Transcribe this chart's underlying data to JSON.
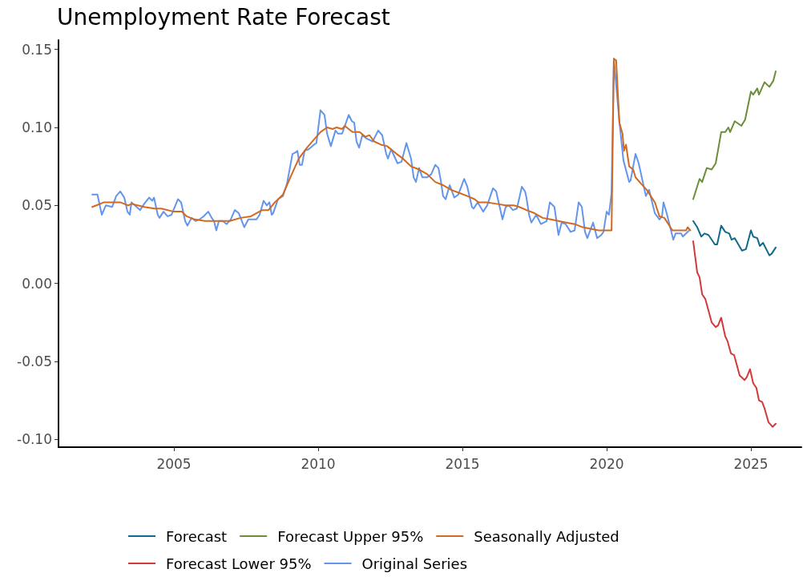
{
  "chart_data": {
    "type": "line",
    "title": "Unemployment Rate Forecast",
    "legend": "bottom",
    "grid": false,
    "marker": "none",
    "line_style": "solid",
    "xlim": [
      2001,
      2026.75
    ],
    "xticks": [
      2005,
      2010,
      2015,
      2020,
      2025
    ],
    "ylim": [
      -0.105,
      0.156
    ],
    "yticks": [
      {
        "value": -0.1,
        "label": "-0.10"
      },
      {
        "value": -0.05,
        "label": "-0.05"
      },
      {
        "value": 0,
        "label": "0.00"
      },
      {
        "value": 0.05,
        "label": "0.05"
      },
      {
        "value": 0.1,
        "label": "0.10"
      },
      {
        "value": 0.15,
        "label": "0.15"
      }
    ],
    "series": [
      {
        "name": "Forecast",
        "color": "#0f6a8b",
        "x": [
          2023.0,
          2023.14,
          2023.28,
          2023.39,
          2023.53,
          2023.75,
          2023.83,
          2023.97,
          2024.11,
          2024.25,
          2024.33,
          2024.44,
          2024.69,
          2024.83,
          2025.0,
          2025.08,
          2025.22,
          2025.31,
          2025.42,
          2025.64,
          2025.72,
          2025.86
        ],
        "values": [
          0.04,
          0.036,
          0.03,
          0.032,
          0.031,
          0.025,
          0.025,
          0.037,
          0.033,
          0.032,
          0.028,
          0.029,
          0.021,
          0.022,
          0.034,
          0.03,
          0.029,
          0.024,
          0.026,
          0.018,
          0.019,
          0.023
        ]
      },
      {
        "name": "Forecast Upper 95%",
        "color": "#6b8e3a",
        "x": [
          2023.0,
          2023.22,
          2023.31,
          2023.47,
          2023.64,
          2023.78,
          2023.97,
          2024.11,
          2024.22,
          2024.28,
          2024.44,
          2024.67,
          2024.8,
          2025.0,
          2025.08,
          2025.22,
          2025.28,
          2025.47,
          2025.64,
          2025.78,
          2025.86
        ],
        "values": [
          0.054,
          0.067,
          0.065,
          0.074,
          0.073,
          0.077,
          0.097,
          0.097,
          0.1,
          0.097,
          0.104,
          0.101,
          0.105,
          0.123,
          0.121,
          0.125,
          0.121,
          0.129,
          0.126,
          0.13,
          0.136
        ]
      },
      {
        "name": "Seasonally Adjusted",
        "color": "#d2691e",
        "x": [
          2002.17,
          2002.58,
          2002.86,
          2003.14,
          2003.42,
          2003.53,
          2003.97,
          2004.33,
          2004.56,
          2005.0,
          2005.28,
          2005.44,
          2005.72,
          2006.08,
          2006.56,
          2006.94,
          2007.31,
          2007.67,
          2008.06,
          2008.28,
          2008.5,
          2008.78,
          2009.06,
          2009.33,
          2009.61,
          2009.89,
          2010.08,
          2010.31,
          2010.5,
          2010.64,
          2010.83,
          2010.92,
          2011.19,
          2011.44,
          2011.64,
          2011.78,
          2011.94,
          2012.17,
          2012.39,
          2012.72,
          2012.94,
          2013.22,
          2013.5,
          2013.78,
          2014.06,
          2014.33,
          2014.61,
          2014.89,
          2015.17,
          2015.42,
          2015.56,
          2015.83,
          2016.19,
          2016.5,
          2016.78,
          2016.97,
          2017.22,
          2017.5,
          2017.78,
          2018.06,
          2018.33,
          2018.6,
          2018.9,
          2019.17,
          2019.45,
          2019.72,
          2020.08,
          2020.17,
          2020.25,
          2020.33,
          2020.44,
          2020.55,
          2020.6,
          2020.67,
          2020.78,
          2020.92,
          2021.0,
          2021.19,
          2021.39,
          2021.67,
          2021.83,
          2022.0,
          2022.28,
          2022.75,
          2022.81,
          2022.9
        ],
        "values": [
          0.049,
          0.052,
          0.052,
          0.052,
          0.05,
          0.051,
          0.049,
          0.048,
          0.048,
          0.046,
          0.046,
          0.043,
          0.041,
          0.04,
          0.04,
          0.04,
          0.042,
          0.043,
          0.047,
          0.047,
          0.052,
          0.057,
          0.069,
          0.08,
          0.087,
          0.093,
          0.097,
          0.1,
          0.099,
          0.1,
          0.099,
          0.101,
          0.097,
          0.097,
          0.094,
          0.095,
          0.091,
          0.089,
          0.088,
          0.083,
          0.08,
          0.075,
          0.073,
          0.07,
          0.065,
          0.063,
          0.06,
          0.058,
          0.056,
          0.054,
          0.052,
          0.052,
          0.051,
          0.05,
          0.05,
          0.049,
          0.047,
          0.045,
          0.042,
          0.041,
          0.04,
          0.039,
          0.038,
          0.036,
          0.035,
          0.034,
          0.034,
          0.034,
          0.144,
          0.143,
          0.103,
          0.096,
          0.085,
          0.089,
          0.075,
          0.073,
          0.068,
          0.064,
          0.06,
          0.052,
          0.043,
          0.042,
          0.034,
          0.034,
          0.036,
          0.034
        ]
      },
      {
        "name": "Forecast Lower 95%",
        "color": "#d23a3a",
        "x": [
          2023.0,
          2023.14,
          2023.22,
          2023.31,
          2023.42,
          2023.64,
          2023.78,
          2023.86,
          2023.97,
          2024.11,
          2024.19,
          2024.31,
          2024.42,
          2024.61,
          2024.78,
          2024.86,
          2024.97,
          2025.08,
          2025.19,
          2025.28,
          2025.39,
          2025.47,
          2025.61,
          2025.75,
          2025.86
        ],
        "values": [
          0.027,
          0.007,
          0.004,
          -0.007,
          -0.01,
          -0.025,
          -0.028,
          -0.027,
          -0.022,
          -0.034,
          -0.037,
          -0.045,
          -0.046,
          -0.059,
          -0.062,
          -0.06,
          -0.055,
          -0.064,
          -0.067,
          -0.075,
          -0.076,
          -0.08,
          -0.089,
          -0.092,
          -0.09
        ]
      },
      {
        "name": "Original Series",
        "color": "#6495ed",
        "x": [
          2002.17,
          2002.35,
          2002.5,
          2002.64,
          2002.86,
          2003.0,
          2003.14,
          2003.28,
          2003.39,
          2003.47,
          2003.53,
          2003.83,
          2003.97,
          2004.14,
          2004.25,
          2004.31,
          2004.44,
          2004.5,
          2004.64,
          2004.78,
          2004.92,
          2005.14,
          2005.25,
          2005.39,
          2005.47,
          2005.61,
          2005.75,
          2005.89,
          2006.03,
          2006.19,
          2006.31,
          2006.39,
          2006.47,
          2006.56,
          2006.69,
          2006.83,
          2006.97,
          2007.11,
          2007.25,
          2007.44,
          2007.58,
          2007.86,
          2007.97,
          2008.11,
          2008.22,
          2008.31,
          2008.39,
          2008.44,
          2008.61,
          2008.78,
          2008.92,
          2009.11,
          2009.22,
          2009.28,
          2009.36,
          2009.44,
          2009.53,
          2009.67,
          2009.86,
          2009.94,
          2010.08,
          2010.22,
          2010.31,
          2010.44,
          2010.6,
          2010.69,
          2010.83,
          2011.06,
          2011.17,
          2011.25,
          2011.33,
          2011.42,
          2011.53,
          2011.67,
          2011.89,
          2012.08,
          2012.22,
          2012.36,
          2012.42,
          2012.53,
          2012.75,
          2012.89,
          2013.06,
          2013.22,
          2013.31,
          2013.39,
          2013.5,
          2013.61,
          2013.78,
          2013.92,
          2014.06,
          2014.17,
          2014.25,
          2014.33,
          2014.42,
          2014.56,
          2014.72,
          2014.86,
          2015.06,
          2015.17,
          2015.33,
          2015.39,
          2015.53,
          2015.72,
          2015.86,
          2016.06,
          2016.17,
          2016.28,
          2016.39,
          2016.5,
          2016.61,
          2016.75,
          2016.89,
          2017.06,
          2017.17,
          2017.22,
          2017.31,
          2017.39,
          2017.56,
          2017.72,
          2017.92,
          2018.03,
          2018.19,
          2018.33,
          2018.44,
          2018.58,
          2018.75,
          2018.89,
          2019.03,
          2019.14,
          2019.25,
          2019.33,
          2019.53,
          2019.67,
          2019.81,
          2019.89,
          2020.0,
          2020.08,
          2020.17,
          2020.25,
          2020.44,
          2020.58,
          2020.78,
          2020.83,
          2021.0,
          2021.11,
          2021.36,
          2021.47,
          2021.67,
          2021.83,
          2021.92,
          2021.97,
          2022.08,
          2022.31,
          2022.39,
          2022.58,
          2022.64,
          2022.86
        ],
        "values": [
          0.057,
          0.057,
          0.044,
          0.05,
          0.049,
          0.056,
          0.059,
          0.055,
          0.046,
          0.044,
          0.052,
          0.047,
          0.051,
          0.055,
          0.053,
          0.055,
          0.044,
          0.042,
          0.046,
          0.043,
          0.044,
          0.054,
          0.052,
          0.04,
          0.037,
          0.042,
          0.04,
          0.041,
          0.043,
          0.046,
          0.042,
          0.04,
          0.034,
          0.04,
          0.04,
          0.038,
          0.041,
          0.047,
          0.045,
          0.036,
          0.041,
          0.041,
          0.044,
          0.053,
          0.05,
          0.052,
          0.044,
          0.045,
          0.054,
          0.056,
          0.064,
          0.083,
          0.084,
          0.085,
          0.076,
          0.076,
          0.085,
          0.086,
          0.089,
          0.09,
          0.111,
          0.108,
          0.096,
          0.088,
          0.098,
          0.096,
          0.096,
          0.108,
          0.104,
          0.103,
          0.091,
          0.087,
          0.095,
          0.093,
          0.091,
          0.098,
          0.095,
          0.083,
          0.08,
          0.086,
          0.077,
          0.078,
          0.09,
          0.08,
          0.068,
          0.065,
          0.074,
          0.068,
          0.068,
          0.07,
          0.076,
          0.074,
          0.066,
          0.056,
          0.054,
          0.063,
          0.055,
          0.057,
          0.067,
          0.062,
          0.049,
          0.048,
          0.052,
          0.046,
          0.05,
          0.061,
          0.059,
          0.05,
          0.041,
          0.049,
          0.05,
          0.047,
          0.048,
          0.062,
          0.059,
          0.055,
          0.044,
          0.039,
          0.044,
          0.038,
          0.04,
          0.052,
          0.049,
          0.031,
          0.039,
          0.038,
          0.033,
          0.034,
          0.052,
          0.049,
          0.033,
          0.029,
          0.039,
          0.029,
          0.031,
          0.033,
          0.046,
          0.044,
          0.058,
          0.144,
          0.104,
          0.079,
          0.065,
          0.066,
          0.083,
          0.077,
          0.056,
          0.06,
          0.045,
          0.041,
          0.043,
          0.052,
          0.045,
          0.028,
          0.032,
          0.032,
          0.03,
          0.034
        ]
      }
    ]
  }
}
